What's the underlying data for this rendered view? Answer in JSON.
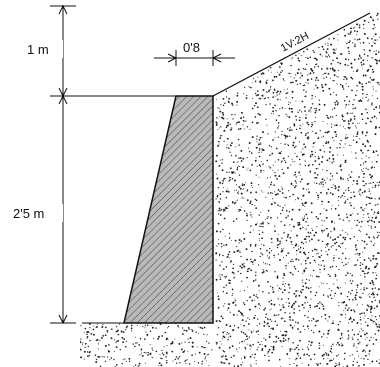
{
  "diagram": {
    "labels": {
      "top_height": "1 m",
      "wall_height": "2'5 m",
      "crest_width": "0'8",
      "slope": "1V:2H"
    },
    "colors": {
      "wall_fill": "#b9b9b9",
      "hatch": "#3a3a3a",
      "line": "#111111",
      "soil_dots": "#222222"
    }
  }
}
